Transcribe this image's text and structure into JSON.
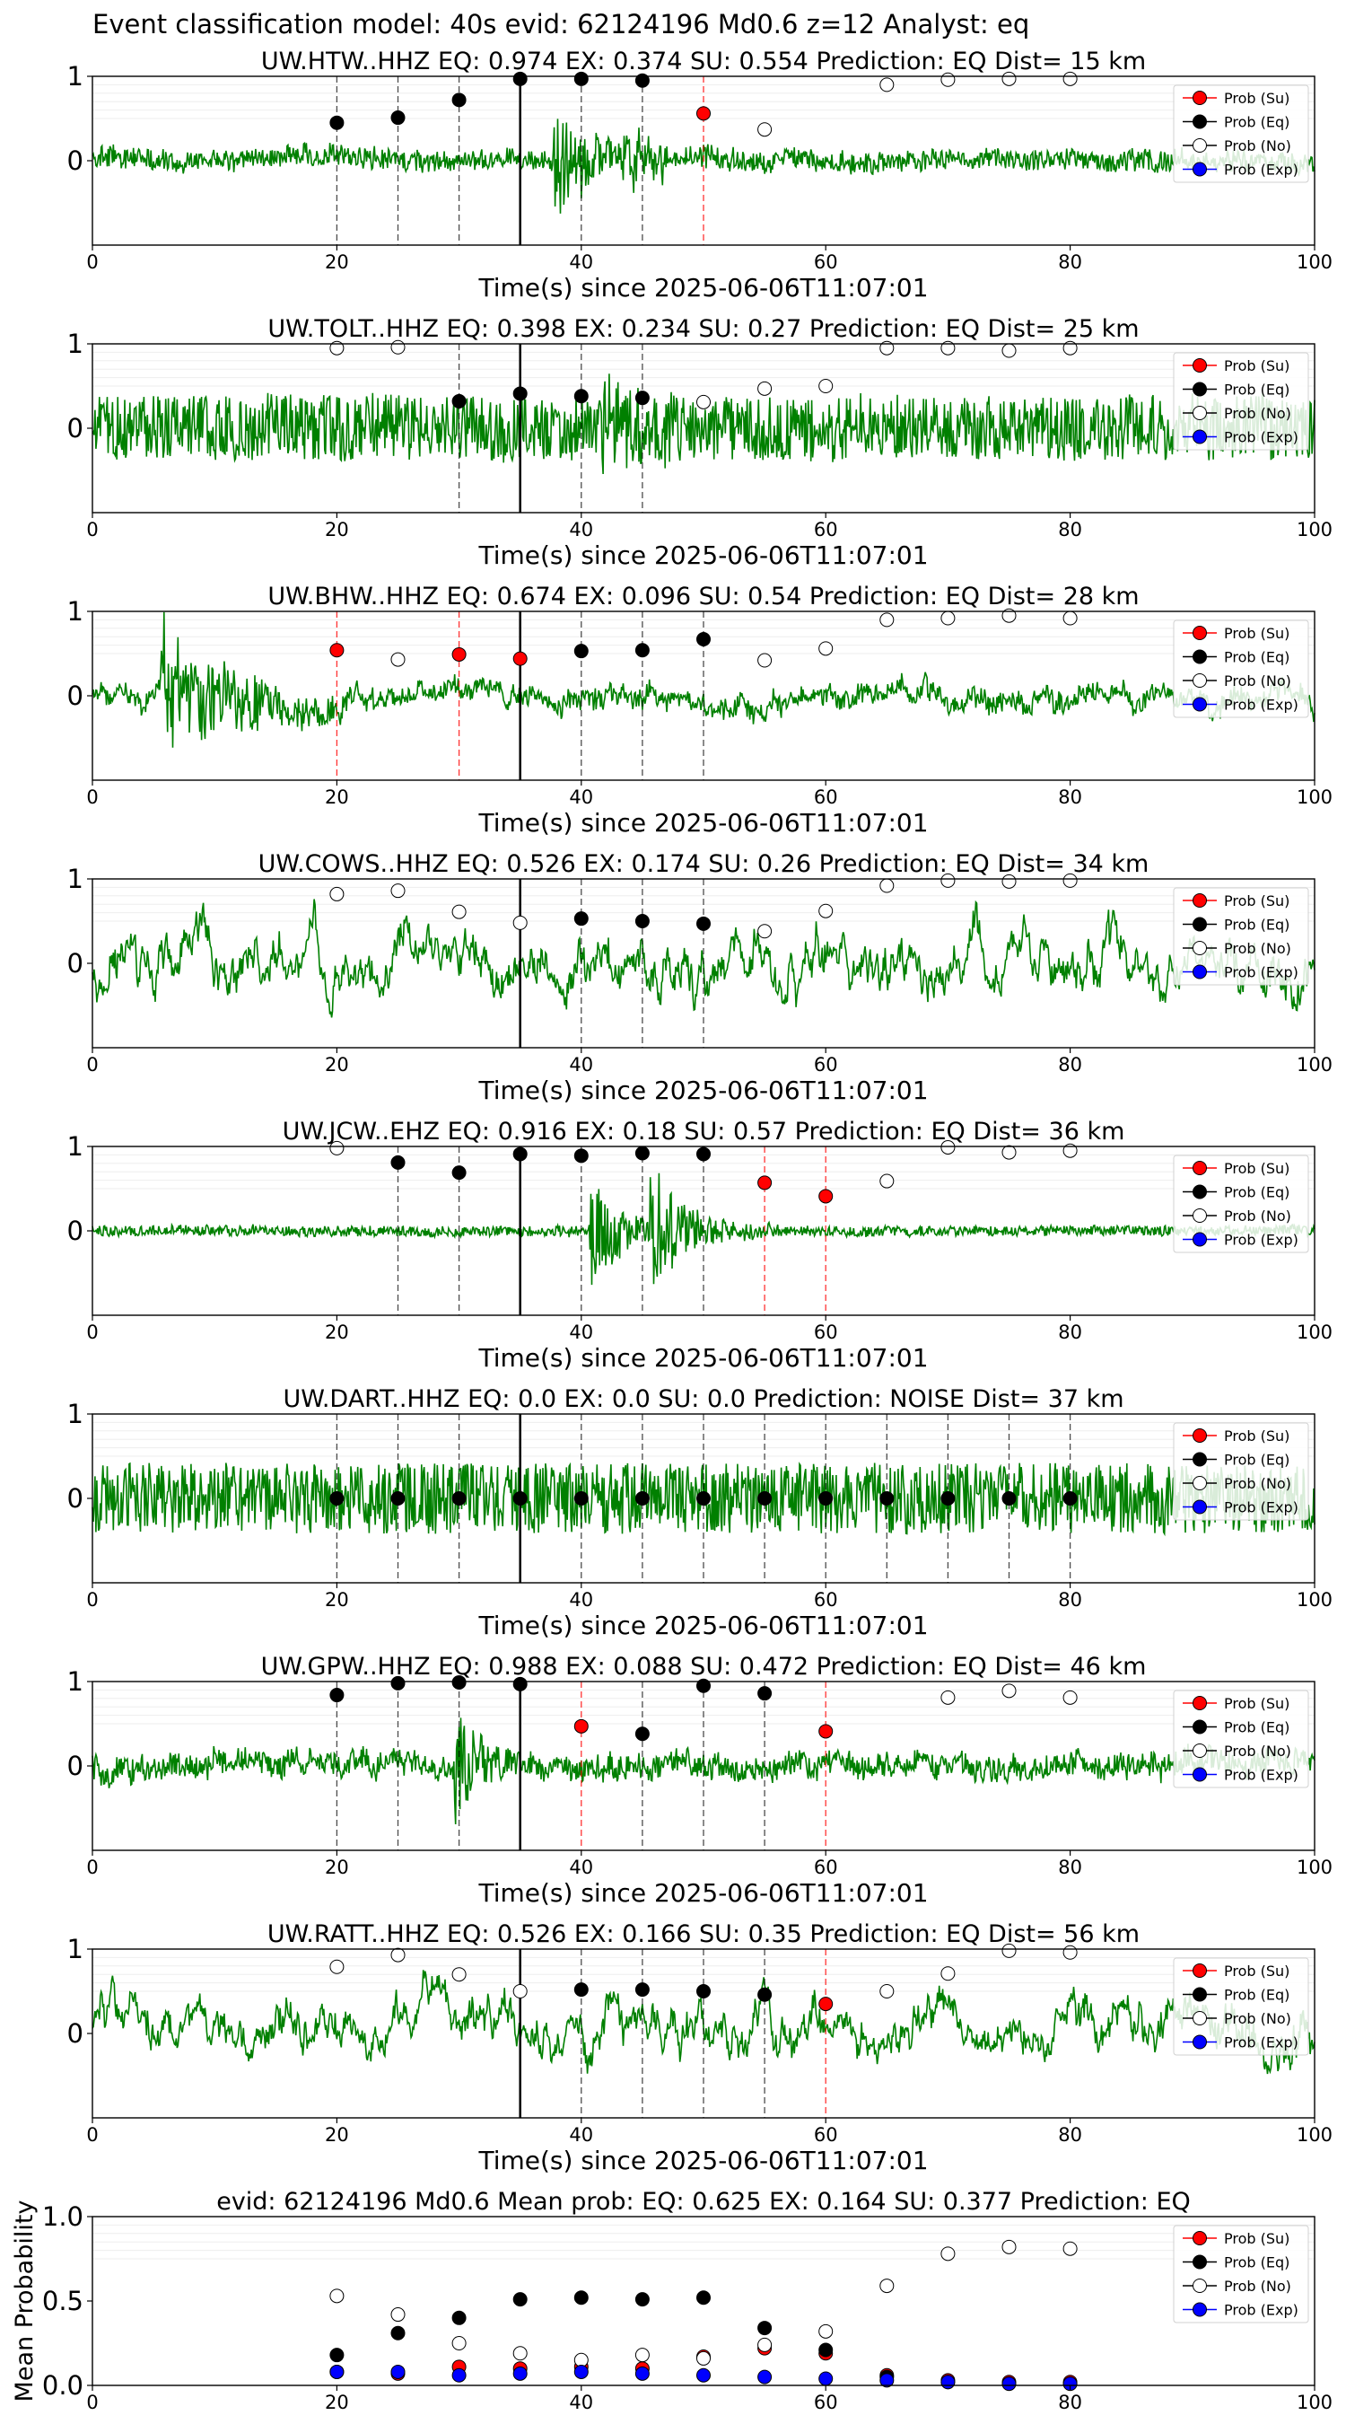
{
  "figure_title": "Event classification model: 40s evid: 62124196 Md0.6 z=12 Analyst: eq",
  "colors": {
    "trace": "#008000",
    "prob_su": "#ff0000",
    "prob_eq": "#000000",
    "prob_no": "#ffffff",
    "prob_exp": "#0000ff",
    "su_line": "#ff0000",
    "eq_line": "#000000",
    "origin_line": "#000000"
  },
  "legend_labels": [
    "Prob (Su)",
    "Prob (Eq)",
    "Prob (No)",
    "Prob (Exp)"
  ],
  "chart_data": [
    {
      "type": "line",
      "title": "UW.HTW..HHZ   EQ: 0.974  EX: 0.374  SU: 0.554   Prediction: EQ    Dist= 15 km",
      "xlabel": "Time(s) since 2025-06-06T11:07:01",
      "xlim": [
        0,
        100
      ],
      "ylim": [
        -1,
        1
      ],
      "xticks": [
        0,
        20,
        40,
        60,
        80,
        100
      ],
      "yticks": [
        0,
        1
      ],
      "origin_time": 35,
      "trace": {
        "noise": 0.12,
        "bursts": [
          {
            "t": 38,
            "amp": 0.55,
            "dur": 5
          },
          {
            "t": 43,
            "amp": 0.25,
            "dur": 4
          }
        ],
        "drift": 0.08,
        "seed": 11
      },
      "windows": [
        {
          "t": 20,
          "marker": "eq",
          "value": 0.45
        },
        {
          "t": 25,
          "marker": "eq",
          "value": 0.51
        },
        {
          "t": 30,
          "marker": "eq",
          "value": 0.72
        },
        {
          "t": 35,
          "marker": "eq",
          "value": 0.97
        },
        {
          "t": 40,
          "marker": "eq",
          "value": 0.97
        },
        {
          "t": 45,
          "marker": "eq",
          "value": 0.95
        },
        {
          "t": 50,
          "marker": "su",
          "value": 0.56
        },
        {
          "t": 55,
          "marker": "no",
          "value": 0.37
        },
        {
          "t": 65,
          "marker": "no",
          "value": 0.9
        },
        {
          "t": 70,
          "marker": "no",
          "value": 0.96
        },
        {
          "t": 75,
          "marker": "no",
          "value": 0.97
        },
        {
          "t": 80,
          "marker": "no",
          "value": 0.97
        }
      ]
    },
    {
      "type": "line",
      "title": "UW.TOLT..HHZ   EQ: 0.398  EX: 0.234  SU: 0.27   Prediction: EQ    Dist= 25 km",
      "xlabel": "Time(s) since 2025-06-06T11:07:01",
      "xlim": [
        0,
        100
      ],
      "ylim": [
        -1,
        1
      ],
      "xticks": [
        0,
        20,
        40,
        60,
        80,
        100
      ],
      "yticks": [
        0,
        1
      ],
      "origin_time": 35,
      "trace": {
        "noise": 0.38,
        "bursts": [
          {
            "t": 42,
            "amp": 0.35,
            "dur": 6
          }
        ],
        "drift": 0.05,
        "seed": 23
      },
      "windows": [
        {
          "t": 20,
          "marker": "no",
          "value": 0.95
        },
        {
          "t": 25,
          "marker": "no",
          "value": 0.96
        },
        {
          "t": 30,
          "marker": "eq",
          "value": 0.32
        },
        {
          "t": 35,
          "marker": "eq",
          "value": 0.41
        },
        {
          "t": 40,
          "marker": "eq",
          "value": 0.38
        },
        {
          "t": 45,
          "marker": "eq",
          "value": 0.36
        },
        {
          "t": 50,
          "marker": "no",
          "value": 0.31
        },
        {
          "t": 55,
          "marker": "no",
          "value": 0.47
        },
        {
          "t": 60,
          "marker": "no",
          "value": 0.5
        },
        {
          "t": 65,
          "marker": "no",
          "value": 0.95
        },
        {
          "t": 70,
          "marker": "no",
          "value": 0.95
        },
        {
          "t": 75,
          "marker": "no",
          "value": 0.92
        },
        {
          "t": 80,
          "marker": "no",
          "value": 0.95
        }
      ]
    },
    {
      "type": "line",
      "title": "UW.BHW..HHZ   EQ: 0.674  EX: 0.096  SU: 0.54   Prediction: EQ    Dist= 28 km",
      "xlabel": "Time(s) since 2025-06-06T11:07:01",
      "xlim": [
        0,
        100
      ],
      "ylim": [
        -1,
        1
      ],
      "xticks": [
        0,
        20,
        40,
        60,
        80,
        100
      ],
      "yticks": [
        0,
        1
      ],
      "origin_time": 35,
      "trace": {
        "noise": 0.1,
        "bursts": [
          {
            "t": 6,
            "amp": 0.75,
            "dur": 7
          }
        ],
        "drift": 0.2,
        "seed": 37
      },
      "windows": [
        {
          "t": 20,
          "marker": "su",
          "value": 0.54
        },
        {
          "t": 25,
          "marker": "no",
          "value": 0.43
        },
        {
          "t": 30,
          "marker": "su",
          "value": 0.49
        },
        {
          "t": 35,
          "marker": "su",
          "value": 0.44
        },
        {
          "t": 40,
          "marker": "eq",
          "value": 0.53
        },
        {
          "t": 45,
          "marker": "eq",
          "value": 0.54
        },
        {
          "t": 50,
          "marker": "eq",
          "value": 0.67
        },
        {
          "t": 55,
          "marker": "no",
          "value": 0.42
        },
        {
          "t": 60,
          "marker": "no",
          "value": 0.56
        },
        {
          "t": 65,
          "marker": "no",
          "value": 0.9
        },
        {
          "t": 70,
          "marker": "no",
          "value": 0.92
        },
        {
          "t": 75,
          "marker": "no",
          "value": 0.95
        },
        {
          "t": 80,
          "marker": "no",
          "value": 0.92
        }
      ]
    },
    {
      "type": "line",
      "title": "UW.COWS..HHZ   EQ: 0.526  EX: 0.174  SU: 0.26   Prediction: EQ    Dist= 34 km",
      "xlabel": "Time(s) since 2025-06-06T11:07:01",
      "xlim": [
        0,
        100
      ],
      "ylim": [
        -1,
        1
      ],
      "xticks": [
        0,
        20,
        40,
        60,
        80,
        100
      ],
      "yticks": [
        0,
        1
      ],
      "origin_time": 35,
      "trace": {
        "noise": 0.1,
        "bursts": [],
        "drift": 0.55,
        "seed": 41
      },
      "windows": [
        {
          "t": 20,
          "marker": "no",
          "value": 0.82
        },
        {
          "t": 25,
          "marker": "no",
          "value": 0.86
        },
        {
          "t": 30,
          "marker": "no",
          "value": 0.61
        },
        {
          "t": 35,
          "marker": "no",
          "value": 0.48
        },
        {
          "t": 40,
          "marker": "eq",
          "value": 0.53
        },
        {
          "t": 45,
          "marker": "eq",
          "value": 0.5
        },
        {
          "t": 50,
          "marker": "eq",
          "value": 0.47
        },
        {
          "t": 55,
          "marker": "no",
          "value": 0.38
        },
        {
          "t": 60,
          "marker": "no",
          "value": 0.62
        },
        {
          "t": 65,
          "marker": "no",
          "value": 0.92
        },
        {
          "t": 70,
          "marker": "no",
          "value": 0.98
        },
        {
          "t": 75,
          "marker": "no",
          "value": 0.97
        },
        {
          "t": 80,
          "marker": "no",
          "value": 0.98
        }
      ]
    },
    {
      "type": "line",
      "title": "UW.JCW..EHZ   EQ: 0.916  EX: 0.18  SU: 0.57   Prediction: EQ    Dist= 36 km",
      "xlabel": "Time(s) since 2025-06-06T11:07:01",
      "xlim": [
        0,
        100
      ],
      "ylim": [
        -1,
        1
      ],
      "xticks": [
        0,
        20,
        40,
        60,
        80,
        100
      ],
      "yticks": [
        0,
        1
      ],
      "origin_time": 35,
      "trace": {
        "noise": 0.06,
        "bursts": [
          {
            "t": 41,
            "amp": 0.65,
            "dur": 3
          },
          {
            "t": 46,
            "amp": 0.8,
            "dur": 3
          }
        ],
        "drift": 0.02,
        "seed": 53
      },
      "windows": [
        {
          "t": 20,
          "marker": "no",
          "value": 0.98
        },
        {
          "t": 25,
          "marker": "eq",
          "value": 0.81
        },
        {
          "t": 30,
          "marker": "eq",
          "value": 0.69
        },
        {
          "t": 35,
          "marker": "eq",
          "value": 0.91
        },
        {
          "t": 40,
          "marker": "eq",
          "value": 0.89
        },
        {
          "t": 45,
          "marker": "eq",
          "value": 0.92
        },
        {
          "t": 50,
          "marker": "eq",
          "value": 0.91
        },
        {
          "t": 55,
          "marker": "su",
          "value": 0.57
        },
        {
          "t": 60,
          "marker": "su",
          "value": 0.41
        },
        {
          "t": 65,
          "marker": "no",
          "value": 0.59
        },
        {
          "t": 70,
          "marker": "no",
          "value": 0.99
        },
        {
          "t": 75,
          "marker": "no",
          "value": 0.93
        },
        {
          "t": 80,
          "marker": "no",
          "value": 0.95
        }
      ]
    },
    {
      "type": "line",
      "title": "UW.DART..HHZ   EQ: 0.0  EX: 0.0  SU: 0.0   Prediction: NOISE    Dist= 37 km",
      "xlabel": "Time(s) since 2025-06-06T11:07:01",
      "xlim": [
        0,
        100
      ],
      "ylim": [
        -1,
        1
      ],
      "xticks": [
        0,
        20,
        40,
        60,
        80,
        100
      ],
      "yticks": [
        0,
        1
      ],
      "origin_time": 35,
      "trace": {
        "noise": 0.42,
        "bursts": [],
        "drift": 0.0,
        "seed": 67
      },
      "windows": [
        {
          "t": 20,
          "marker": "eq",
          "value": 0.0
        },
        {
          "t": 25,
          "marker": "eq",
          "value": 0.0
        },
        {
          "t": 30,
          "marker": "eq",
          "value": 0.0
        },
        {
          "t": 35,
          "marker": "eq",
          "value": 0.0
        },
        {
          "t": 40,
          "marker": "eq",
          "value": 0.0
        },
        {
          "t": 45,
          "marker": "eq",
          "value": 0.0
        },
        {
          "t": 50,
          "marker": "eq",
          "value": 0.0
        },
        {
          "t": 55,
          "marker": "eq",
          "value": 0.0
        },
        {
          "t": 60,
          "marker": "eq",
          "value": 0.0
        },
        {
          "t": 65,
          "marker": "eq",
          "value": 0.0
        },
        {
          "t": 70,
          "marker": "eq",
          "value": 0.0
        },
        {
          "t": 75,
          "marker": "eq",
          "value": 0.0
        },
        {
          "t": 80,
          "marker": "eq",
          "value": 0.0
        }
      ]
    },
    {
      "type": "line",
      "title": "UW.GPW..HHZ   EQ: 0.988  EX: 0.088  SU: 0.472   Prediction: EQ    Dist= 46 km",
      "xlabel": "Time(s) since 2025-06-06T11:07:01",
      "xlim": [
        0,
        100
      ],
      "ylim": [
        -1,
        1
      ],
      "xticks": [
        0,
        20,
        40,
        60,
        80,
        100
      ],
      "yticks": [
        0,
        1
      ],
      "origin_time": 35,
      "trace": {
        "noise": 0.14,
        "bursts": [
          {
            "t": 30,
            "amp": 0.7,
            "dur": 2
          }
        ],
        "drift": 0.12,
        "seed": 79
      },
      "windows": [
        {
          "t": 20,
          "marker": "eq",
          "value": 0.84
        },
        {
          "t": 25,
          "marker": "eq",
          "value": 0.98
        },
        {
          "t": 30,
          "marker": "eq",
          "value": 0.99
        },
        {
          "t": 35,
          "marker": "eq",
          "value": 0.97
        },
        {
          "t": 40,
          "marker": "su",
          "value": 0.47
        },
        {
          "t": 45,
          "marker": "eq",
          "value": 0.38
        },
        {
          "t": 50,
          "marker": "eq",
          "value": 0.95
        },
        {
          "t": 55,
          "marker": "eq",
          "value": 0.86
        },
        {
          "t": 60,
          "marker": "su",
          "value": 0.41
        },
        {
          "t": 70,
          "marker": "no",
          "value": 0.81
        },
        {
          "t": 75,
          "marker": "no",
          "value": 0.89
        },
        {
          "t": 80,
          "marker": "no",
          "value": 0.81
        }
      ]
    },
    {
      "type": "line",
      "title": "UW.RATT..HHZ   EQ: 0.526  EX: 0.166  SU: 0.35   Prediction: EQ    Dist= 56 km",
      "xlabel": "Time(s) since 2025-06-06T11:07:01",
      "xlim": [
        0,
        100
      ],
      "ylim": [
        -1,
        1
      ],
      "xticks": [
        0,
        20,
        40,
        60,
        80,
        100
      ],
      "yticks": [
        0,
        1
      ],
      "origin_time": 35,
      "trace": {
        "noise": 0.1,
        "bursts": [],
        "drift": 0.5,
        "seed": 97
      },
      "windows": [
        {
          "t": 20,
          "marker": "no",
          "value": 0.79
        },
        {
          "t": 25,
          "marker": "no",
          "value": 0.93
        },
        {
          "t": 30,
          "marker": "no",
          "value": 0.7
        },
        {
          "t": 35,
          "marker": "no",
          "value": 0.5
        },
        {
          "t": 40,
          "marker": "eq",
          "value": 0.52
        },
        {
          "t": 45,
          "marker": "eq",
          "value": 0.52
        },
        {
          "t": 50,
          "marker": "eq",
          "value": 0.5
        },
        {
          "t": 55,
          "marker": "eq",
          "value": 0.46
        },
        {
          "t": 60,
          "marker": "su",
          "value": 0.35
        },
        {
          "t": 65,
          "marker": "no",
          "value": 0.5
        },
        {
          "t": 70,
          "marker": "no",
          "value": 0.71
        },
        {
          "t": 75,
          "marker": "no",
          "value": 0.98
        },
        {
          "t": 80,
          "marker": "no",
          "value": 0.96
        }
      ]
    },
    {
      "type": "scatter",
      "title": "evid: 62124196  Md0.6   Mean prob:    EQ: 0.625  EX: 0.164  SU: 0.377   Prediction: EQ",
      "xlabel": "",
      "ylabel": "Mean Probability",
      "xlim": [
        0,
        100
      ],
      "ylim": [
        0,
        1
      ],
      "xticks": [
        0,
        20,
        40,
        60,
        80,
        100
      ],
      "yticks": [
        0.0,
        0.5,
        1.0
      ],
      "x": [
        20,
        25,
        30,
        35,
        40,
        45,
        50,
        55,
        60,
        65,
        70,
        75,
        80
      ],
      "series": [
        {
          "name": "Prob (Su)",
          "key": "su",
          "values": [
            0.08,
            0.07,
            0.11,
            0.1,
            0.11,
            0.1,
            0.17,
            0.22,
            0.19,
            0.06,
            0.03,
            0.02,
            0.02
          ]
        },
        {
          "name": "Prob (Eq)",
          "key": "eq",
          "values": [
            0.18,
            0.31,
            0.4,
            0.51,
            0.52,
            0.51,
            0.52,
            0.34,
            0.21,
            0.05,
            0.02,
            0.01,
            0.01
          ]
        },
        {
          "name": "Prob (No)",
          "key": "no",
          "values": [
            0.53,
            0.42,
            0.25,
            0.19,
            0.15,
            0.18,
            0.16,
            0.24,
            0.32,
            0.59,
            0.78,
            0.82,
            0.81
          ]
        },
        {
          "name": "Prob (Exp)",
          "key": "exp",
          "values": [
            0.08,
            0.08,
            0.06,
            0.07,
            0.08,
            0.07,
            0.06,
            0.05,
            0.04,
            0.03,
            0.02,
            0.01,
            0.01
          ]
        }
      ]
    }
  ]
}
